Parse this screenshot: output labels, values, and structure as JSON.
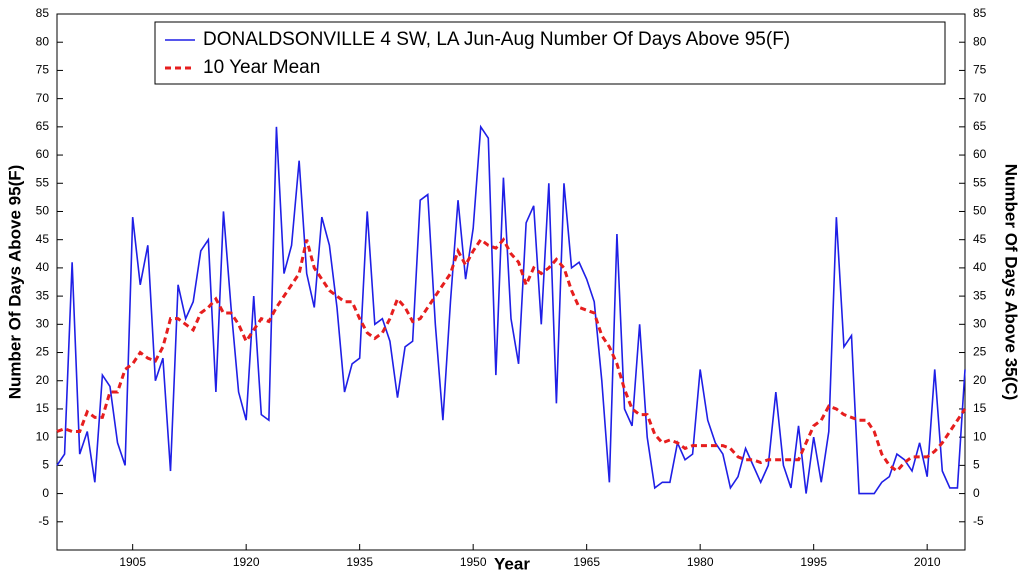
{
  "chart_data": {
    "type": "line",
    "legend_position": "upper right",
    "x_label": "Year",
    "y_label": "Number Of Days Above 95(F)",
    "y2_label": "Number Of Days Above 35(C)",
    "x": [
      1895,
      1896,
      1897,
      1898,
      1899,
      1900,
      1901,
      1902,
      1903,
      1904,
      1905,
      1906,
      1907,
      1908,
      1909,
      1910,
      1911,
      1912,
      1913,
      1914,
      1915,
      1916,
      1917,
      1918,
      1919,
      1920,
      1921,
      1922,
      1923,
      1924,
      1925,
      1926,
      1927,
      1928,
      1929,
      1930,
      1931,
      1932,
      1933,
      1934,
      1935,
      1936,
      1937,
      1938,
      1939,
      1940,
      1941,
      1942,
      1943,
      1944,
      1945,
      1946,
      1947,
      1948,
      1949,
      1950,
      1951,
      1952,
      1953,
      1954,
      1955,
      1956,
      1957,
      1958,
      1959,
      1960,
      1961,
      1962,
      1963,
      1964,
      1965,
      1966,
      1967,
      1968,
      1969,
      1970,
      1971,
      1972,
      1973,
      1974,
      1975,
      1976,
      1977,
      1978,
      1979,
      1980,
      1981,
      1982,
      1983,
      1984,
      1985,
      1986,
      1987,
      1988,
      1989,
      1990,
      1991,
      1992,
      1993,
      1994,
      1995,
      1996,
      1997,
      1998,
      1999,
      2000,
      2001,
      2002,
      2003,
      2004,
      2005,
      2006,
      2007,
      2008,
      2009,
      2010,
      2011,
      2012,
      2013,
      2014,
      2015
    ],
    "series": [
      {
        "name": "DONALDSONVILLE 4 SW, LA  Jun-Aug  Number Of Days Above 95(F)",
        "color": "#1f1fe6",
        "dashed": false,
        "values": [
          5,
          7,
          41,
          7,
          11,
          2,
          21,
          19,
          9,
          5,
          49,
          37,
          44,
          20,
          24,
          4,
          37,
          31,
          34,
          43,
          45,
          18,
          50,
          33,
          18,
          13,
          35,
          14,
          13,
          65,
          39,
          44,
          59,
          39,
          33,
          49,
          44,
          33,
          18,
          23,
          24,
          50,
          30,
          31,
          27,
          17,
          26,
          27,
          52,
          53,
          30,
          13,
          34,
          52,
          38,
          47,
          65,
          63,
          21,
          56,
          31,
          23,
          48,
          51,
          30,
          55,
          16,
          55,
          40,
          41,
          38,
          34,
          20,
          2,
          46,
          15,
          12,
          30,
          10,
          1,
          2,
          2,
          9,
          6,
          7,
          22,
          13,
          9,
          7,
          1,
          3,
          8,
          5,
          2,
          5,
          18,
          5,
          1,
          12,
          0,
          10,
          2,
          11,
          49,
          26,
          28,
          0,
          0,
          0,
          2,
          3,
          7,
          6,
          4,
          9,
          3,
          22,
          4,
          1,
          1,
          22
        ]
      },
      {
        "name": "10 Year Mean",
        "color": "#e61e1e",
        "dashed": true,
        "values": [
          11,
          11.5,
          11,
          11,
          14.5,
          13.5,
          13.5,
          18,
          18,
          22,
          23,
          25,
          24,
          23.5,
          26,
          31,
          31,
          30,
          29,
          32,
          33,
          34.5,
          32,
          32,
          30,
          27,
          29,
          31,
          30.5,
          33,
          35,
          37,
          39,
          45,
          40,
          38,
          36,
          35,
          34,
          34,
          31,
          28.5,
          27.5,
          28.5,
          31,
          34.5,
          33,
          30.5,
          31,
          33,
          35,
          37,
          39,
          43,
          40.5,
          43,
          45,
          44,
          43.5,
          45,
          42.5,
          41,
          37,
          40,
          39,
          40,
          41.5,
          40,
          36,
          33,
          32.5,
          32,
          28,
          26,
          23,
          18.5,
          15,
          14,
          14,
          10.5,
          9,
          9.5,
          9,
          8,
          8.5,
          8.5,
          8.5,
          8.5,
          8.5,
          8,
          6.5,
          6,
          6,
          5.5,
          6,
          6,
          6,
          6,
          6,
          9,
          12,
          13,
          15.5,
          15,
          14,
          13.5,
          13,
          13,
          11,
          7,
          5,
          4,
          5.5,
          6.5,
          6.5,
          6.5,
          7.5,
          9,
          11,
          13,
          15
        ]
      }
    ],
    "xlim": [
      1895,
      2015
    ],
    "xticks": [
      1905,
      1920,
      1935,
      1950,
      1965,
      1980,
      1995,
      2010
    ],
    "ylim": [
      -10,
      85
    ],
    "yticks": [
      -5,
      0,
      5,
      10,
      15,
      20,
      25,
      30,
      35,
      40,
      45,
      50,
      55,
      60,
      65,
      70,
      75,
      80,
      85
    ],
    "y2lim": [
      -10,
      85
    ],
    "y2ticks": [
      -5,
      0,
      5,
      10,
      15,
      20,
      25,
      30,
      35,
      40,
      45,
      50,
      55,
      60,
      65,
      70,
      75,
      80,
      85
    ]
  }
}
